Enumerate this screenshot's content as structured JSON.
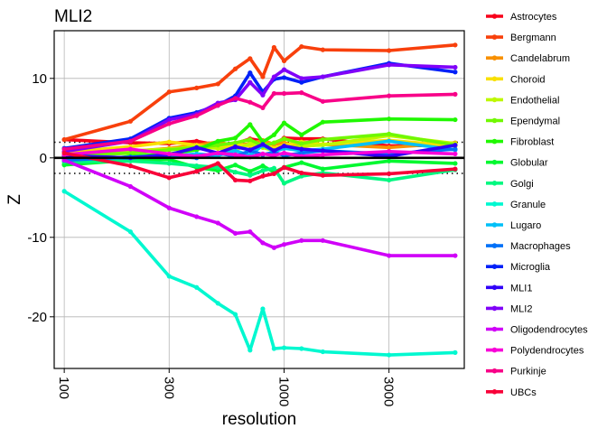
{
  "chart_data": {
    "type": "line",
    "title": "MLI2",
    "xlabel": "resolution",
    "ylabel": "Z",
    "x_scale": "log",
    "x": [
      100,
      200,
      300,
      400,
      500,
      600,
      700,
      800,
      900,
      1000,
      1200,
      1500,
      3000,
      6000
    ],
    "xlim": [
      90,
      6600
    ],
    "ylim": [
      -26.5,
      16
    ],
    "x_ticks": [
      100,
      300,
      1000,
      3000
    ],
    "x_tick_labels": [
      "100",
      "300",
      "1000",
      "3000"
    ],
    "y_ticks": [
      -20,
      -10,
      0,
      10
    ],
    "y_tick_labels": [
      "-20",
      "-10",
      "0",
      "10"
    ],
    "grid": true,
    "zero_line": 0,
    "threshold_lines": [
      1.96,
      -1.96
    ],
    "legend_position": "right",
    "series": [
      {
        "name": "Astrocytes",
        "color": "#F8001A",
        "values": [
          2.3,
          1.9,
          1.8,
          2.1,
          1.6,
          1.8,
          2.4,
          2.1,
          1.7,
          2.5,
          2.4,
          2.4,
          1.5,
          1.6
        ]
      },
      {
        "name": "Bergmann",
        "color": "#F8400C",
        "values": [
          2.3,
          4.6,
          8.3,
          8.8,
          9.3,
          11.2,
          12.5,
          10.2,
          13.9,
          12.2,
          14.0,
          13.6,
          13.5,
          14.2
        ]
      },
      {
        "name": "Candelabrum",
        "color": "#F89000",
        "values": [
          0.3,
          0.8,
          1.2,
          1.6,
          2.0,
          1.5,
          1.8,
          2.2,
          1.7,
          1.9,
          1.4,
          1.7,
          1.3,
          1.9
        ]
      },
      {
        "name": "Choroid",
        "color": "#F8E000",
        "values": [
          0.7,
          1.4,
          2.0,
          1.6,
          1.2,
          1.7,
          1.5,
          1.8,
          1.2,
          1.6,
          2.0,
          1.7,
          2.2,
          1.5
        ]
      },
      {
        "name": "Endothelial",
        "color": "#BEF800",
        "values": [
          0.0,
          0.9,
          1.1,
          1.4,
          1.2,
          1.0,
          1.8,
          1.3,
          0.9,
          1.2,
          1.5,
          1.6,
          2.8,
          1.8
        ]
      },
      {
        "name": "Ependymal",
        "color": "#70F800",
        "values": [
          0.2,
          0.6,
          1.0,
          1.3,
          1.6,
          1.9,
          2.3,
          1.5,
          1.9,
          2.4,
          1.8,
          2.3,
          3.0,
          1.6
        ]
      },
      {
        "name": "Fibroblast",
        "color": "#20F800",
        "values": [
          -0.8,
          0.2,
          0.5,
          1.0,
          2.1,
          2.5,
          4.2,
          2.0,
          2.9,
          4.4,
          2.9,
          4.5,
          4.9,
          4.8
        ]
      },
      {
        "name": "Globular",
        "color": "#00F830",
        "values": [
          -0.9,
          -0.3,
          -0.2,
          -1.2,
          -1.6,
          -0.9,
          -1.7,
          -1.0,
          -1.8,
          -1.2,
          -0.6,
          -1.4,
          -0.4,
          -0.7
        ]
      },
      {
        "name": "Golgi",
        "color": "#00F880",
        "values": [
          -0.5,
          -0.4,
          -0.7,
          -1.0,
          -1.2,
          -1.8,
          -2.2,
          -1.6,
          -1.3,
          -3.2,
          -2.3,
          -1.9,
          -2.8,
          -1.5
        ]
      },
      {
        "name": "Granule",
        "color": "#00F8D0",
        "values": [
          -4.2,
          -9.3,
          -14.9,
          -16.3,
          -18.3,
          -19.7,
          -24.2,
          -19.0,
          -24.0,
          -23.9,
          -24.0,
          -24.4,
          -24.8,
          -24.5
        ]
      },
      {
        "name": "Lugaro",
        "color": "#00C0F8",
        "values": [
          -0.1,
          0.0,
          0.2,
          0.5,
          0.3,
          0.9,
          0.3,
          1.6,
          0.8,
          1.2,
          0.9,
          1.1,
          2.1,
          1.0
        ]
      },
      {
        "name": "Macrophages",
        "color": "#0070F8",
        "values": [
          -0.3,
          0.1,
          0.3,
          0.0,
          0.6,
          0.2,
          0.9,
          0.4,
          0.7,
          0.3,
          0.6,
          0.9,
          0.5,
          1.1
        ]
      },
      {
        "name": "Microglia",
        "color": "#0020F8",
        "values": [
          1.2,
          2.4,
          5.0,
          5.7,
          6.6,
          7.8,
          10.7,
          8.3,
          9.9,
          10.1,
          9.5,
          10.2,
          11.9,
          10.8
        ]
      },
      {
        "name": "MLI1",
        "color": "#3000F8",
        "values": [
          0.3,
          0.0,
          0.4,
          1.3,
          0.6,
          1.4,
          1.0,
          1.7,
          0.9,
          1.5,
          1.1,
          0.9,
          0.2,
          1.6
        ]
      },
      {
        "name": "MLI2",
        "color": "#8000F8",
        "values": [
          0.8,
          2.1,
          4.8,
          5.5,
          6.9,
          7.3,
          9.5,
          7.9,
          10.2,
          11.1,
          10.0,
          10.2,
          11.7,
          11.4
        ]
      },
      {
        "name": "Oligodendrocytes",
        "color": "#D000F8",
        "values": [
          -0.3,
          -3.6,
          -6.3,
          -7.4,
          -8.2,
          -9.5,
          -9.3,
          -10.7,
          -11.3,
          -10.9,
          -10.4,
          -10.4,
          -12.3,
          -12.3
        ]
      },
      {
        "name": "Polydendrocytes",
        "color": "#F800D8",
        "values": [
          0.4,
          1.1,
          0.5,
          0.2,
          0.6,
          0.4,
          0.1,
          0.5,
          0.3,
          0.6,
          0.2,
          0.4,
          0.8,
          0.5
        ]
      },
      {
        "name": "Purkinje",
        "color": "#F80088",
        "values": [
          1.1,
          2.1,
          4.3,
          5.3,
          6.6,
          7.5,
          7.0,
          6.3,
          8.1,
          8.1,
          8.2,
          7.1,
          7.8,
          8.0
        ]
      },
      {
        "name": "UBCs",
        "color": "#F80038",
        "values": [
          0.6,
          -1.0,
          -2.5,
          -1.7,
          -0.7,
          -2.8,
          -2.9,
          -2.3,
          -2.0,
          -1.2,
          -1.9,
          -2.2,
          -2.0,
          -1.4
        ]
      }
    ]
  }
}
